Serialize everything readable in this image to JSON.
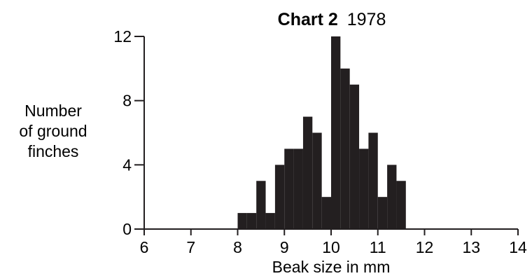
{
  "chart_data": {
    "type": "bar",
    "title": "Chart 2",
    "subtitle": "1978",
    "xlabel": "Beak size in mm",
    "ylabel": [
      "Number",
      "of ground",
      "finches"
    ],
    "xlim": [
      6,
      14
    ],
    "ylim": [
      0,
      12
    ],
    "xticks": [
      "6",
      "7",
      "8",
      "9",
      "10",
      "11",
      "12",
      "13",
      "14"
    ],
    "yticks": [
      "0",
      "4",
      "8",
      "12"
    ],
    "bin_width": 0.2,
    "bin_starts": [
      8.0,
      8.2,
      8.4,
      8.6,
      8.8,
      9.0,
      9.2,
      9.4,
      9.6,
      9.8,
      10.0,
      10.2,
      10.4,
      10.6,
      10.8,
      11.0,
      11.2,
      11.4
    ],
    "values": [
      1,
      1,
      3,
      1,
      4,
      5,
      5,
      7,
      6,
      2,
      12,
      10,
      9,
      5,
      6,
      2,
      4,
      3
    ],
    "grid": false,
    "bar_color": "#231f20"
  }
}
